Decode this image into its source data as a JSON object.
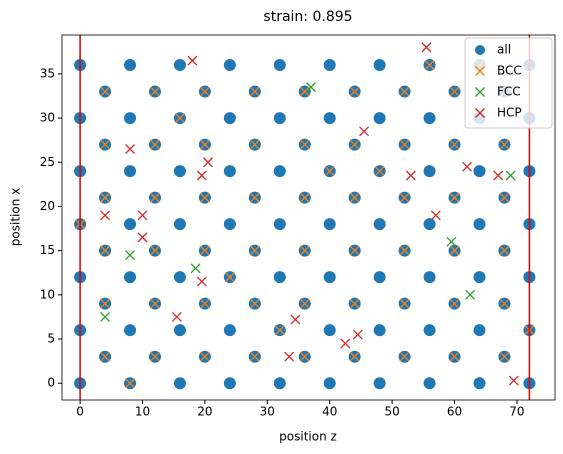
{
  "chart_data": {
    "type": "scatter",
    "title": "strain: 0.895",
    "xlabel": "position z",
    "ylabel": "position x",
    "xlim": [
      -2.9,
      76.1
    ],
    "ylim": [
      -1.9,
      39.4
    ],
    "xticks": [
      0,
      10,
      20,
      30,
      40,
      50,
      60,
      70
    ],
    "yticks": [
      0,
      5,
      10,
      15,
      20,
      25,
      30,
      35
    ],
    "vlines": [
      0,
      72
    ],
    "vline_color": "#e00000",
    "legend": "upper right",
    "series": [
      {
        "name": "all",
        "color": "#1f77b4",
        "marker": "o",
        "x": [
          0,
          8,
          16,
          24,
          32,
          40,
          48,
          56,
          64,
          72,
          0,
          8,
          16,
          24,
          32,
          40,
          48,
          56,
          64,
          72,
          0,
          8,
          16,
          24,
          32,
          40,
          48,
          56,
          64,
          72,
          0,
          8,
          16,
          24,
          32,
          40,
          48,
          56,
          64,
          72,
          0,
          8,
          16,
          24,
          32,
          40,
          48,
          56,
          64,
          72,
          0,
          8,
          16,
          24,
          32,
          40,
          48,
          56,
          64,
          72,
          0,
          8,
          16,
          24,
          32,
          40,
          48,
          56,
          64,
          72,
          4,
          12,
          20,
          28,
          36,
          44,
          52,
          60,
          68,
          4,
          12,
          20,
          28,
          36,
          44,
          52,
          60,
          68,
          4,
          12,
          20,
          28,
          36,
          44,
          52,
          60,
          68,
          4,
          12,
          20,
          28,
          36,
          44,
          52,
          60,
          68,
          4,
          12,
          20,
          28,
          36,
          44,
          52,
          60,
          68,
          4,
          12,
          20,
          28,
          36,
          44,
          52,
          60,
          68
        ],
        "y": [
          0,
          0,
          0,
          0,
          0,
          0,
          0,
          0,
          0,
          0,
          6,
          6,
          6,
          6,
          6,
          6,
          6,
          6,
          6,
          6,
          12,
          12,
          12,
          12,
          12,
          12,
          12,
          12,
          12,
          12,
          18,
          18,
          18,
          18,
          18,
          18,
          18,
          18,
          18,
          18,
          24,
          24,
          24,
          24,
          24,
          24,
          24,
          24,
          24,
          24,
          30,
          30,
          30,
          30,
          30,
          30,
          30,
          30,
          30,
          30,
          36,
          36,
          36,
          36,
          36,
          36,
          36,
          36,
          36,
          36,
          3,
          3,
          3,
          3,
          3,
          3,
          3,
          3,
          3,
          9,
          9,
          9,
          9,
          9,
          9,
          9,
          9,
          9,
          15,
          15,
          15,
          15,
          15,
          15,
          15,
          15,
          15,
          21,
          21,
          21,
          21,
          21,
          21,
          21,
          21,
          21,
          27,
          27,
          27,
          27,
          27,
          27,
          27,
          27,
          27,
          33,
          33,
          33,
          33,
          33,
          33,
          33,
          33,
          33
        ]
      },
      {
        "name": "BCC",
        "color": "#ff7f0e",
        "marker": "x",
        "x": [
          4,
          12,
          20,
          28,
          36,
          44,
          52,
          60,
          68,
          4,
          12,
          20,
          28,
          36,
          44,
          52,
          60,
          68,
          4,
          12,
          20,
          28,
          36,
          44,
          52,
          60,
          68,
          4,
          12,
          20,
          28,
          36,
          44,
          52,
          60,
          68,
          4,
          12,
          20,
          28,
          36,
          44,
          52,
          60,
          68,
          4,
          12,
          20,
          28,
          36,
          44,
          52,
          60,
          68,
          8,
          24,
          40,
          56,
          72,
          0,
          16,
          32,
          48,
          64
        ],
        "y": [
          3,
          3,
          3,
          3,
          3,
          3,
          3,
          3,
          3,
          9,
          9,
          9,
          9,
          9,
          9,
          9,
          9,
          9,
          15,
          15,
          15,
          15,
          15,
          15,
          15,
          15,
          15,
          21,
          21,
          21,
          21,
          21,
          21,
          21,
          21,
          21,
          27,
          27,
          27,
          27,
          27,
          27,
          27,
          27,
          27,
          33,
          33,
          33,
          33,
          33,
          33,
          33,
          33,
          33,
          0,
          12,
          24,
          36,
          6,
          18,
          30,
          6,
          24,
          36
        ]
      },
      {
        "name": "FCC",
        "color": "#2ca02c",
        "marker": "x",
        "x": [
          37,
          69,
          59.5,
          8,
          18.5,
          62.5,
          4
        ],
        "y": [
          33.5,
          23.5,
          16,
          14.5,
          13,
          10,
          7.5
        ]
      },
      {
        "name": "HCP",
        "color": "#d62728",
        "marker": "x",
        "x": [
          18,
          55.5,
          45.5,
          8,
          20.5,
          19.5,
          53,
          62,
          67,
          4,
          57,
          10,
          10,
          19.5,
          15.5,
          34.5,
          44.5,
          42.5,
          33.5,
          69.5
        ],
        "y": [
          36.5,
          38,
          28.5,
          26.5,
          25,
          23.5,
          23.5,
          24.5,
          23.5,
          19,
          19,
          19,
          16.5,
          11.5,
          7.5,
          7.2,
          5.5,
          4.5,
          3,
          0.3
        ]
      }
    ]
  }
}
